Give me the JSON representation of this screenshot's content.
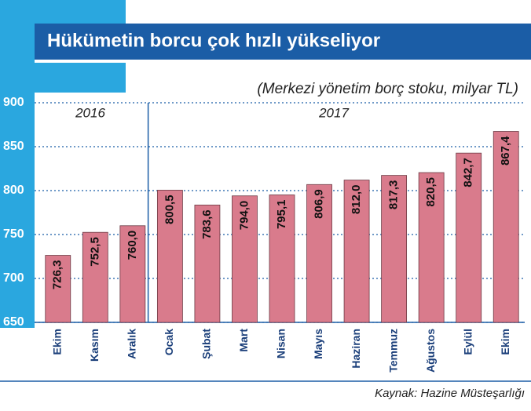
{
  "chart_data": {
    "type": "bar",
    "title": "Hükümetin borcu çok hızlı yükseliyor",
    "subtitle": "(Merkezi yönetim borç stoku, milyar TL)",
    "annotations": [
      "2016",
      "2017"
    ],
    "source": "Kaynak: Hazine Müsteşarlığı",
    "categories": [
      "Ekim",
      "Kasım",
      "Aralık",
      "Ocak",
      "Şubat",
      "Mart",
      "Nisan",
      "Mayıs",
      "Haziran",
      "Temmuz",
      "Ağustos",
      "Eylül",
      "Ekim"
    ],
    "values": [
      726.3,
      752.5,
      760.0,
      800.5,
      783.6,
      794.0,
      795.1,
      806.9,
      812.0,
      817.3,
      820.5,
      842.7,
      867.4
    ],
    "value_labels": [
      "726,3",
      "752,5",
      "760,0",
      "800,5",
      "783,6",
      "794,0",
      "795,1",
      "806,9",
      "812,0",
      "817,3",
      "820,5",
      "842,7",
      "867,4"
    ],
    "color": "#d97b8c",
    "ylim": [
      650,
      900
    ],
    "yticks": [
      650,
      700,
      750,
      800,
      850,
      900
    ],
    "grid": true
  }
}
